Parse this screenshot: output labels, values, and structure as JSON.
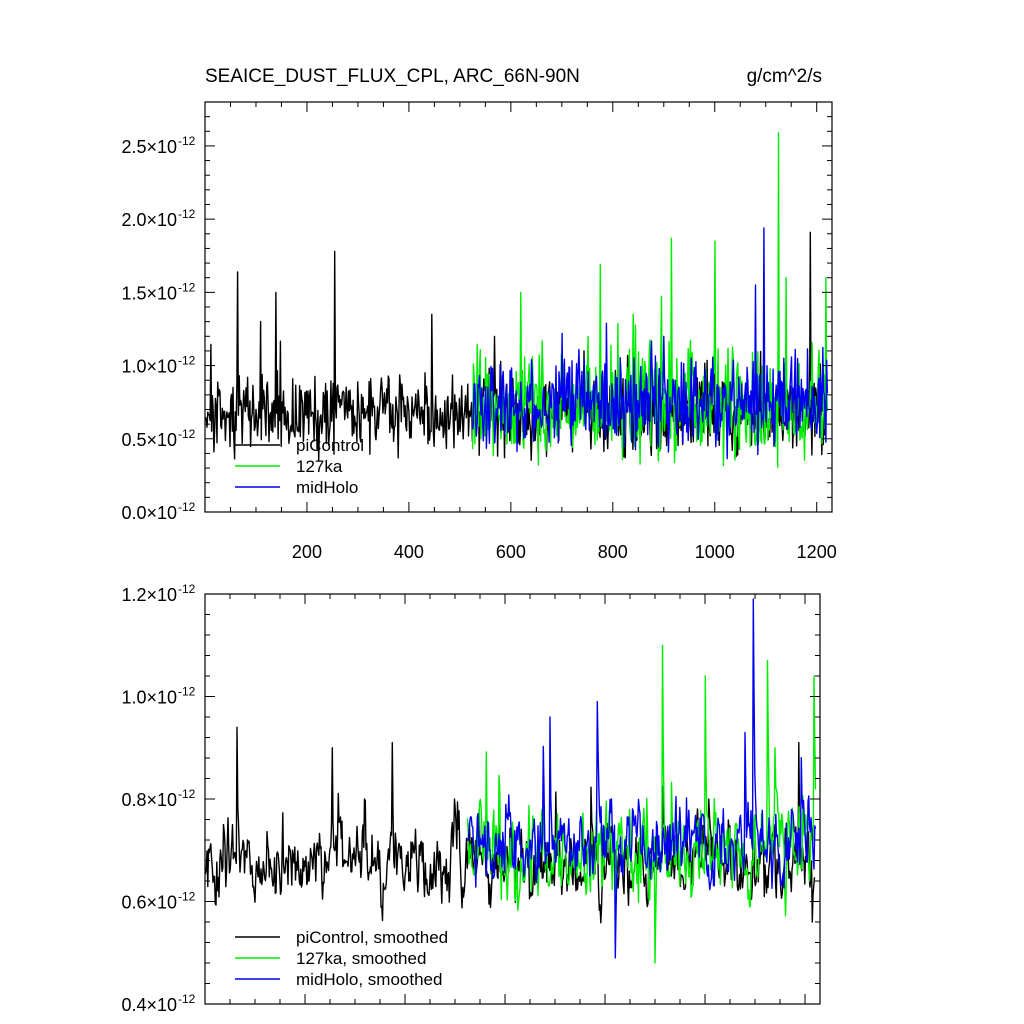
{
  "chart_data": [
    {
      "type": "line",
      "title": "SEAICE_DUST_FLUX_CPL, ARC_66N-90N",
      "units": "g/cm^2/s",
      "xlim": [
        0,
        1230
      ],
      "ylim": [
        0.0,
        2.8
      ],
      "y_exponent": "-12",
      "x_ticks": [
        200,
        400,
        600,
        800,
        1000,
        1200
      ],
      "x_tick_labels": [
        "200",
        "400",
        "600",
        "800",
        "1000",
        "1200"
      ],
      "y_ticks": [
        0.0,
        0.5,
        1.0,
        1.5,
        2.0,
        2.5
      ],
      "y_tick_labels": [
        "0.0×10",
        "0.5×10",
        "1.0×10",
        "1.5×10",
        "2.0×10",
        "2.5×10"
      ],
      "legend_position": "lower-left",
      "series": [
        {
          "name": "piControl",
          "color": "#000000",
          "x_range": [
            1,
            1220
          ],
          "mean": 0.67,
          "spread": 0.16,
          "spikes": [
            [
              65,
              1.64
            ],
            [
              140,
              1.5
            ],
            [
              255,
              1.78
            ],
            [
              110,
              1.3
            ],
            [
              445,
              1.35
            ],
            [
              1188,
              1.91
            ],
            [
              1000,
              1.05
            ]
          ]
        },
        {
          "name": "127ka",
          "color": "#00ee00",
          "x_range": [
            525,
            1222
          ],
          "mean": 0.72,
          "spread": 0.22,
          "spikes": [
            [
              1125,
              2.59
            ],
            [
              915,
              1.87
            ],
            [
              1000,
              1.85
            ],
            [
              775,
              1.69
            ],
            [
              1140,
              1.6
            ],
            [
              1218,
              1.6
            ],
            [
              620,
              1.5
            ],
            [
              840,
              1.35
            ]
          ]
        },
        {
          "name": "midHolo",
          "color": "#0000ee",
          "x_range": [
            525,
            1222
          ],
          "mean": 0.73,
          "spread": 0.18,
          "spikes": [
            [
              1097,
              1.94
            ],
            [
              1080,
              1.55
            ],
            [
              1222,
              1.25
            ],
            [
              700,
              1.22
            ],
            [
              900,
              1.2
            ]
          ]
        }
      ]
    },
    {
      "type": "line",
      "title": "",
      "xlim": [
        0,
        1230
      ],
      "ylim": [
        0.4,
        1.2
      ],
      "y_exponent": "-12",
      "x_ticks": [
        200,
        400,
        600,
        800,
        1000,
        1200
      ],
      "x_tick_labels": [],
      "y_ticks": [
        0.4,
        0.6,
        0.8,
        1.0,
        1.2
      ],
      "y_tick_labels": [
        "0.4×10",
        "0.6×10",
        "0.8×10",
        "1.0×10",
        "1.2×10"
      ],
      "legend_position": "lower-left",
      "series": [
        {
          "name": "piControl, smoothed",
          "color": "#000000",
          "x_range": [
            1,
            1220
          ],
          "mean": 0.67,
          "spread": 0.06,
          "spikes": [
            [
              65,
              0.94
            ],
            [
              255,
              0.9
            ],
            [
              375,
              0.91
            ],
            [
              320,
              0.8
            ],
            [
              1188,
              0.91
            ],
            [
              1215,
              0.56
            ]
          ]
        },
        {
          "name": "127ka, smoothed",
          "color": "#00ee00",
          "x_range": [
            525,
            1222
          ],
          "mean": 0.69,
          "spread": 0.075,
          "spikes": [
            [
              915,
              1.1
            ],
            [
              1125,
              1.07
            ],
            [
              1218,
              1.04
            ],
            [
              1000,
              1.04
            ],
            [
              1140,
              0.9
            ],
            [
              900,
              0.48
            ]
          ]
        },
        {
          "name": "midHolo, smoothed",
          "color": "#0000ee",
          "x_range": [
            525,
            1222
          ],
          "mean": 0.71,
          "spread": 0.06,
          "spikes": [
            [
              1097,
              1.19
            ],
            [
              785,
              0.99
            ],
            [
              690,
              0.96
            ],
            [
              1080,
              0.93
            ],
            [
              820,
              0.49
            ]
          ]
        }
      ]
    }
  ]
}
